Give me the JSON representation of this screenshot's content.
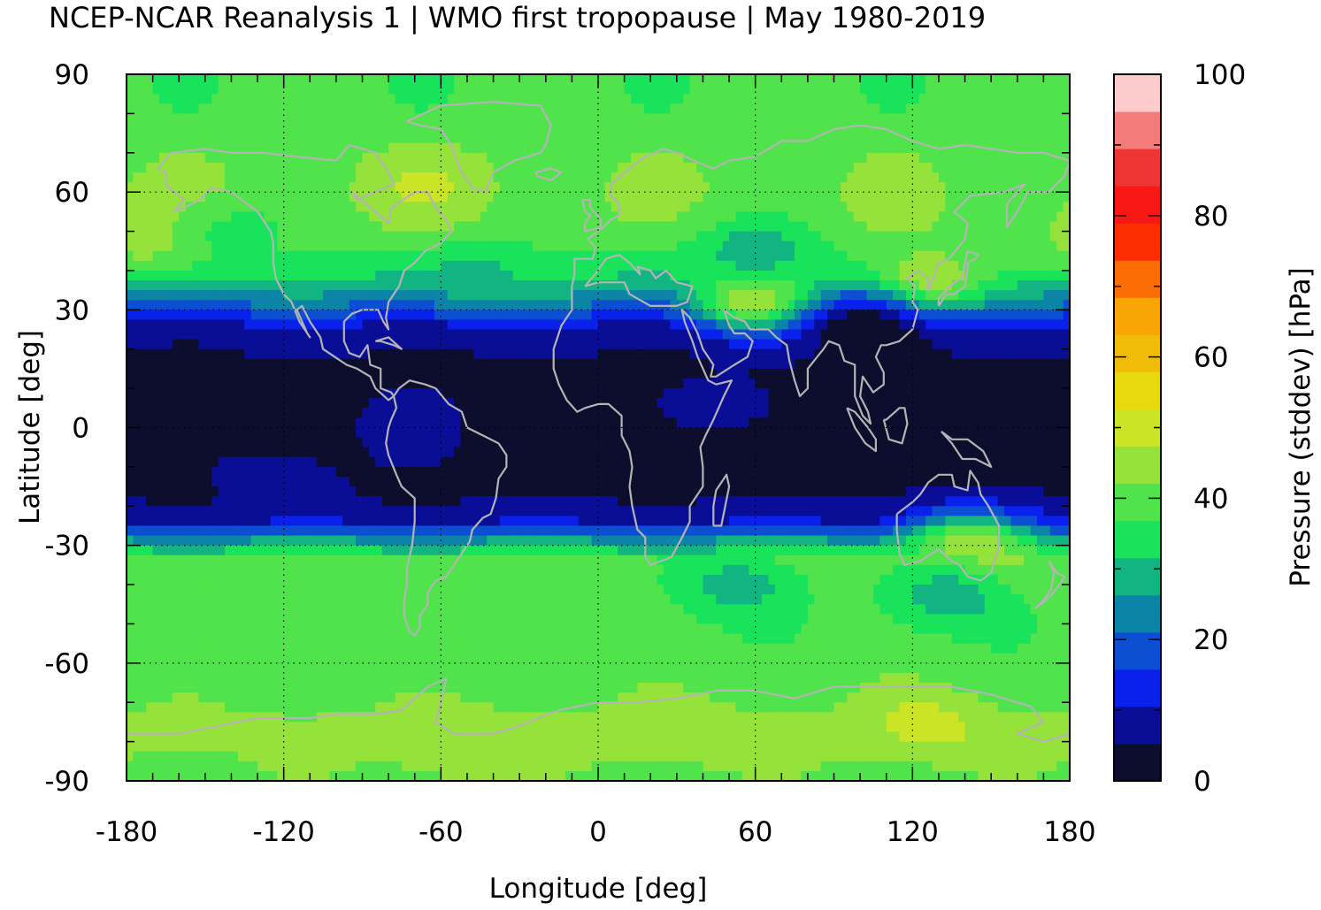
{
  "chart_data": {
    "type": "heatmap",
    "title": "NCEP-NCAR Reanalysis 1 | WMO first tropopause | May 1980-2019",
    "xlabel": "Longitude [deg]",
    "ylabel": "Latitude [deg]",
    "xlim": [
      -180,
      180
    ],
    "ylim": [
      -90,
      90
    ],
    "x_ticks": [
      "-180",
      "-120",
      "-60",
      "0",
      "60",
      "120",
      "180"
    ],
    "y_ticks": [
      "90",
      "60",
      "30",
      "0",
      "-30",
      "-60",
      "-90"
    ],
    "grid": true,
    "coastlines": true,
    "coastline_color": "#b4b4b4",
    "colorbar": {
      "label": "Pressure (stddev) [hPa]",
      "range": [
        0,
        100
      ],
      "ticks": [
        "0",
        "20",
        "40",
        "60",
        "80",
        "100"
      ],
      "colors": [
        "#0d0d2d",
        "#0a0e96",
        "#0a20eb",
        "#0c4fd2",
        "#0b84a7",
        "#12b582",
        "#19e35b",
        "#50e34b",
        "#94e23a",
        "#cbe425",
        "#e8d90f",
        "#efbd08",
        "#f8a506",
        "#fb6e06",
        "#fd2d02",
        "#f71715",
        "#ee3533",
        "#f37b79",
        "#fdcbcb"
      ]
    },
    "latitude_profile": [
      {
        "lat": 90,
        "value": 38
      },
      {
        "lat": 80,
        "value": 38
      },
      {
        "lat": 70,
        "value": 41
      },
      {
        "lat": 60,
        "value": 42
      },
      {
        "lat": 50,
        "value": 41
      },
      {
        "lat": 40,
        "value": 34
      },
      {
        "lat": 32,
        "value": 22
      },
      {
        "lat": 25,
        "value": 8
      },
      {
        "lat": 18,
        "value": 5
      },
      {
        "lat": 0,
        "value": 2
      },
      {
        "lat": -18,
        "value": 5
      },
      {
        "lat": -24,
        "value": 10
      },
      {
        "lat": -28,
        "value": 24
      },
      {
        "lat": -34,
        "value": 40
      },
      {
        "lat": -50,
        "value": 38
      },
      {
        "lat": -65,
        "value": 40
      },
      {
        "lat": -80,
        "value": 44
      },
      {
        "lat": -90,
        "value": 40
      }
    ],
    "anomalies": [
      {
        "lon": -65,
        "lat": 62,
        "value": 47
      },
      {
        "lon": -170,
        "lat": 48,
        "value": 45
      },
      {
        "lon": 60,
        "lat": 33,
        "value": 47
      },
      {
        "lon": 125,
        "lat": 38,
        "value": 47
      },
      {
        "lon": 60,
        "lat": 45,
        "value": 28
      },
      {
        "lon": -45,
        "lat": 38,
        "value": 30
      },
      {
        "lon": -140,
        "lat": 50,
        "value": 35
      },
      {
        "lon": 140,
        "lat": -30,
        "value": 46
      },
      {
        "lon": 135,
        "lat": -43,
        "value": 28
      },
      {
        "lon": 55,
        "lat": -40,
        "value": 28
      },
      {
        "lon": -55,
        "lat": -82,
        "value": 48
      },
      {
        "lon": 30,
        "lat": -78,
        "value": 46
      },
      {
        "lon": 125,
        "lat": -76,
        "value": 50
      },
      {
        "lon": 100,
        "lat": 25,
        "value": 2
      },
      {
        "lon": 55,
        "lat": 5,
        "value": 8
      },
      {
        "lon": -75,
        "lat": 0,
        "value": 8
      },
      {
        "lon": -120,
        "lat": -12,
        "value": 8
      }
    ]
  }
}
